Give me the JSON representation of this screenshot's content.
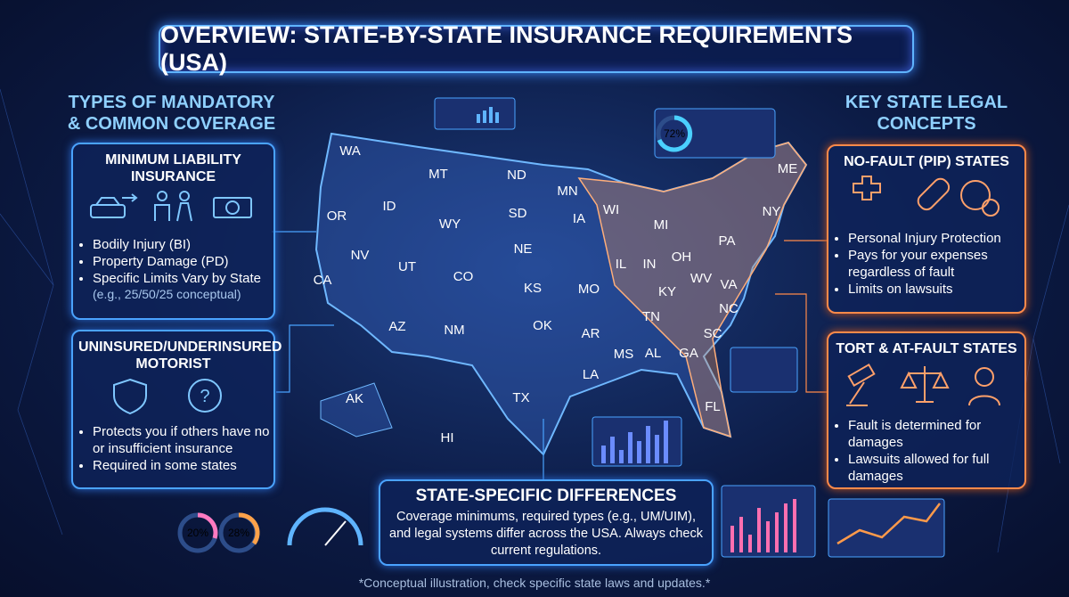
{
  "header": {
    "title": "OVERVIEW: STATE-BY-STATE INSURANCE REQUIREMENTS (USA)"
  },
  "left": {
    "heading": "TYPES OF MANDATORY & COMMON COVERAGE",
    "panels": [
      {
        "title": "MINIMUM LIABILITY INSURANCE",
        "items": [
          "Bodily Injury (BI)",
          "Property Damage (PD)",
          "Specific Limits Vary by State"
        ],
        "note": "(e.g., 25/50/25 conceptual)"
      },
      {
        "title": "UNINSURED/UNDERINSURED MOTORIST",
        "items": [
          "Protects you if others have no or insufficient insurance",
          "Required in some states"
        ]
      }
    ]
  },
  "right": {
    "heading": "KEY STATE LEGAL CONCEPTS",
    "panels": [
      {
        "title": "NO-FAULT (PIP) STATES",
        "items": [
          "Personal Injury Protection",
          "Pays for your expenses regardless of fault",
          "Limits on lawsuits"
        ]
      },
      {
        "title": "TORT & AT-FAULT STATES",
        "items": [
          "Fault is determined for damages",
          "Lawsuits allowed for full damages"
        ]
      }
    ]
  },
  "map": {
    "states": [
      "WA",
      "OR",
      "CA",
      "NV",
      "ID",
      "MT",
      "WY",
      "UT",
      "CO",
      "AZ",
      "NM",
      "ND",
      "SD",
      "NE",
      "KS",
      "OK",
      "TX",
      "MN",
      "IA",
      "MO",
      "AR",
      "LA",
      "WI",
      "IL",
      "MI",
      "IN",
      "OH",
      "KY",
      "TN",
      "MS",
      "AL",
      "GA",
      "FL",
      "SC",
      "NC",
      "VA",
      "WV",
      "PA",
      "NY",
      "ME",
      "AK",
      "HI"
    ]
  },
  "center": {
    "title": "STATE-SPECIFIC DIFFERENCES",
    "text": "Coverage minimums, required types (e.g., UM/UIM), and legal systems differ across the USA. Always check current regulations."
  },
  "widgets": {
    "donut_top": "72%",
    "donut_left": "20%",
    "donut_right": "28%"
  },
  "footer": {
    "note": "*Conceptual illustration, check specific state laws and updates.*"
  }
}
